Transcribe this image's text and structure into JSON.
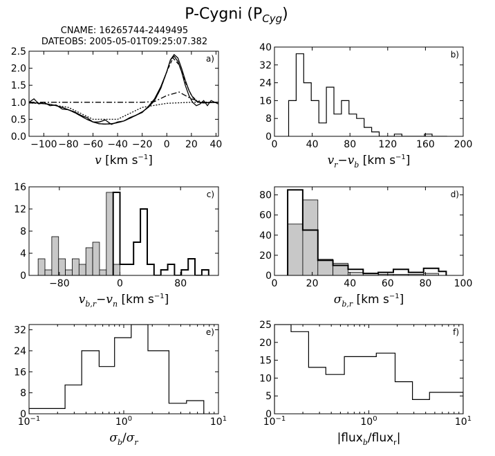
{
  "figure": {
    "title_main": "P-Cygni (P",
    "title_sub": "Cyg",
    "title_end": ")",
    "cname": "CNAME: 16265744-2449495",
    "dateobs": "DATEOBS: 2005-05-01T09:25:07.382"
  },
  "chart_data": [
    {
      "type": "line",
      "panel_label": "a)",
      "xlabel_var": "v",
      "xlabel_unit": " [km s",
      "xlabel_exp": "−1",
      "xlabel_end": "]",
      "xlim": [
        -112,
        42
      ],
      "ylim": [
        0,
        2.5
      ],
      "xticks": [
        -100,
        -80,
        -60,
        -40,
        -20,
        0,
        20,
        40
      ],
      "xtick_labels": [
        "−100",
        "−80",
        "−60",
        "−40",
        "−20",
        "0",
        "20",
        "40"
      ],
      "yticks": [
        0,
        0.5,
        1.0,
        1.5,
        2.0,
        2.5
      ],
      "ytick_labels": [
        "0.0",
        "0.5",
        "1.0",
        "1.5",
        "2.0",
        "2.5"
      ],
      "series": [
        {
          "style": "solid",
          "x": [
            -112,
            -108,
            -104,
            -100,
            -95,
            -90,
            -85,
            -80,
            -75,
            -70,
            -65,
            -60,
            -55,
            -50,
            -45,
            -40,
            -35,
            -30,
            -25,
            -20,
            -15,
            -10,
            -5,
            0,
            3,
            6,
            9,
            12,
            15,
            18,
            21,
            24,
            27,
            30,
            33,
            36,
            39,
            42
          ],
          "y": [
            1.0,
            1.1,
            0.95,
            1.0,
            0.9,
            0.92,
            0.8,
            0.78,
            0.72,
            0.62,
            0.55,
            0.42,
            0.42,
            0.48,
            0.35,
            0.42,
            0.45,
            0.55,
            0.62,
            0.7,
            0.88,
            1.1,
            1.45,
            1.9,
            2.25,
            2.35,
            2.2,
            1.9,
            1.5,
            1.2,
            1.0,
            0.9,
            0.95,
            1.05,
            0.9,
            1.05,
            1.0,
            0.95
          ]
        },
        {
          "style": "solid",
          "x": [
            -112,
            -105,
            -100,
            -95,
            -90,
            -85,
            -80,
            -75,
            -70,
            -65,
            -60,
            -55,
            -50,
            -45,
            -40,
            -35,
            -30,
            -25,
            -20,
            -15,
            -10,
            -5,
            0,
            3,
            6,
            9,
            12,
            15,
            18,
            21,
            24,
            27,
            30,
            35,
            42
          ],
          "y": [
            0.98,
            0.98,
            0.96,
            0.94,
            0.9,
            0.85,
            0.78,
            0.7,
            0.6,
            0.5,
            0.42,
            0.37,
            0.36,
            0.37,
            0.4,
            0.45,
            0.53,
            0.62,
            0.72,
            0.85,
            1.05,
            1.4,
            1.9,
            2.25,
            2.4,
            2.3,
            2.0,
            1.65,
            1.35,
            1.15,
            1.03,
            0.99,
            0.98,
            0.99,
            1.0
          ]
        },
        {
          "style": "dashed",
          "x": [
            -112,
            -105,
            -100,
            -95,
            -90,
            -85,
            -80,
            -75,
            -70,
            -65,
            -60,
            -55,
            -50,
            -45,
            -40,
            -35,
            -30,
            -25,
            -20,
            -15,
            -10,
            -5,
            0,
            5,
            10,
            15,
            20,
            25,
            30,
            35,
            42
          ],
          "y": [
            0.98,
            0.98,
            0.96,
            0.94,
            0.9,
            0.85,
            0.78,
            0.7,
            0.6,
            0.5,
            0.42,
            0.37,
            0.36,
            0.37,
            0.4,
            0.45,
            0.53,
            0.62,
            0.72,
            0.85,
            1.05,
            1.4,
            1.9,
            2.3,
            2.1,
            1.6,
            1.2,
            1.02,
            0.99,
            0.99,
            1.0
          ]
        },
        {
          "style": "dashdot",
          "x": [
            -112,
            -100,
            -80,
            -60,
            -40,
            -20,
            -10,
            0,
            10,
            20,
            30,
            42
          ],
          "y": [
            1.0,
            1.0,
            1.0,
            1.0,
            1.0,
            1.0,
            1.02,
            1.2,
            1.3,
            1.1,
            1.0,
            1.0
          ]
        },
        {
          "style": "dotted",
          "x": [
            -112,
            -100,
            -80,
            -60,
            -40,
            -20,
            0,
            20,
            40,
            42
          ],
          "y": [
            0.98,
            0.96,
            0.85,
            0.5,
            0.5,
            0.85,
            0.97,
            1.0,
            1.0,
            1.0
          ]
        }
      ]
    },
    {
      "type": "histogram",
      "panel_label": "b)",
      "xlabel_var": "v",
      "xlabel_sub": "r",
      "xlabel_var2": "v",
      "xlabel_sub2": "b",
      "xlabel_unit": " [km s",
      "xlabel_exp": "−1",
      "xlabel_end": "]",
      "xlim": [
        0,
        200
      ],
      "ylim": [
        0,
        40
      ],
      "xticks": [
        0,
        40,
        80,
        120,
        160,
        200
      ],
      "xtick_labels": [
        "0",
        "40",
        "80",
        "120",
        "160",
        "200"
      ],
      "yticks": [
        0,
        8,
        16,
        24,
        32,
        40
      ],
      "ytick_labels": [
        "0",
        "8",
        "16",
        "24",
        "32",
        "40"
      ],
      "series": [
        {
          "style": "step",
          "edges": [
            15,
            23,
            31,
            39,
            47,
            55,
            63,
            71,
            79,
            87,
            95,
            103,
            111,
            119,
            127,
            135,
            143,
            151,
            159,
            167,
            175,
            183
          ],
          "values": [
            16,
            37,
            24,
            16,
            6,
            22,
            10,
            16,
            10,
            8,
            4,
            2,
            0,
            0,
            1,
            0,
            0,
            0,
            1,
            0,
            0
          ]
        }
      ]
    },
    {
      "type": "histogram",
      "panel_label": "c)",
      "xlabel_var": "v",
      "xlabel_sub": "b,r",
      "xlabel_var2": "v",
      "xlabel_sub2": "n",
      "xlabel_unit": " [km s",
      "xlabel_exp": "−1",
      "xlabel_end": "]",
      "xlim": [
        -120,
        130
      ],
      "ylim": [
        0,
        16
      ],
      "xticks": [
        -80,
        0,
        80
      ],
      "xtick_labels": [
        "−80",
        "0",
        "80"
      ],
      "yticks": [
        0,
        4,
        8,
        12,
        16
      ],
      "ytick_labels": [
        "0",
        "4",
        "8",
        "12",
        "16"
      ],
      "series": [
        {
          "style": "filled",
          "edges": [
            -108,
            -99,
            -90,
            -81,
            -72,
            -63,
            -54,
            -45,
            -36,
            -27,
            -18,
            -9,
            0,
            9
          ],
          "values": [
            3,
            1,
            7,
            3,
            1,
            3,
            2,
            5,
            6,
            1,
            15,
            2,
            0
          ]
        },
        {
          "style": "step",
          "edges": [
            -9,
            0,
            9,
            18,
            27,
            36,
            45,
            54,
            63,
            72,
            81,
            90,
            99,
            108,
            117
          ],
          "values": [
            15,
            2,
            2,
            6,
            12,
            2,
            0,
            1,
            2,
            0,
            1,
            3,
            0,
            1
          ]
        }
      ]
    },
    {
      "type": "histogram",
      "panel_label": "d)",
      "xlabel_var": "σ",
      "xlabel_sub": "b,r",
      "xlabel_unit": " [km s",
      "xlabel_exp": "−1",
      "xlabel_end": "]",
      "xlim": [
        0,
        100
      ],
      "ylim": [
        0,
        88
      ],
      "xticks": [
        0,
        20,
        40,
        60,
        80,
        100
      ],
      "xtick_labels": [
        "0",
        "20",
        "40",
        "60",
        "80",
        "100"
      ],
      "yticks": [
        0,
        20,
        40,
        60,
        80
      ],
      "ytick_labels": [
        "0",
        "20",
        "40",
        "60",
        "80"
      ],
      "series": [
        {
          "style": "filled",
          "edges": [
            7,
            15,
            23,
            31,
            39,
            47,
            55,
            63,
            71,
            79,
            87
          ],
          "values": [
            51,
            75,
            16,
            12,
            3,
            2,
            1,
            1,
            1,
            2
          ]
        },
        {
          "style": "step",
          "edges": [
            7,
            15,
            23,
            31,
            39,
            47,
            55,
            63,
            71,
            79,
            87,
            91
          ],
          "values": [
            85,
            45,
            15,
            10,
            6,
            2,
            3,
            6,
            3,
            7,
            4
          ]
        }
      ]
    },
    {
      "type": "histogram",
      "panel_label": "e)",
      "xlabel_var": "σ",
      "xlabel_sub": "b",
      "xlabel_slash": "/",
      "xlabel_var2": "σ",
      "xlabel_sub2": "r",
      "xscale": "log",
      "xlim": [
        0.1,
        10
      ],
      "ylim": [
        0,
        34
      ],
      "xticks": [
        0.1,
        1,
        10
      ],
      "xtick_base": "10",
      "xtick_exps": [
        "−1",
        "0",
        "1"
      ],
      "yticks": [
        0,
        8,
        16,
        24,
        32
      ],
      "ytick_labels": [
        "0",
        "8",
        "16",
        "24",
        "32"
      ],
      "series": [
        {
          "style": "step",
          "edges": [
            0.1,
            0.24,
            0.36,
            0.55,
            0.8,
            1.2,
            1.8,
            3.0,
            4.6,
            7.0
          ],
          "values": [
            2,
            11,
            24,
            18,
            29,
            34,
            24,
            4,
            5
          ]
        }
      ]
    },
    {
      "type": "histogram",
      "panel_label": "f)",
      "xlabel_pre": "|flux",
      "xlabel_sub": "b",
      "xlabel_mid": "/flux",
      "xlabel_sub2": "r",
      "xlabel_post": "|",
      "xscale": "log",
      "xlim": [
        0.1,
        10
      ],
      "ylim": [
        0,
        25
      ],
      "xticks": [
        0.1,
        1,
        10
      ],
      "xtick_base": "10",
      "xtick_exps": [
        "−1",
        "0",
        "1"
      ],
      "yticks": [
        0,
        5,
        10,
        15,
        20,
        25
      ],
      "ytick_labels": [
        "0",
        "5",
        "10",
        "15",
        "20",
        "25"
      ],
      "series": [
        {
          "style": "step",
          "edges": [
            0.1,
            0.15,
            0.23,
            0.35,
            0.55,
            1.2,
            1.9,
            2.9,
            4.4,
            10
          ],
          "values": [
            25,
            23,
            13,
            11,
            16,
            17,
            9,
            4,
            6
          ]
        }
      ]
    }
  ]
}
